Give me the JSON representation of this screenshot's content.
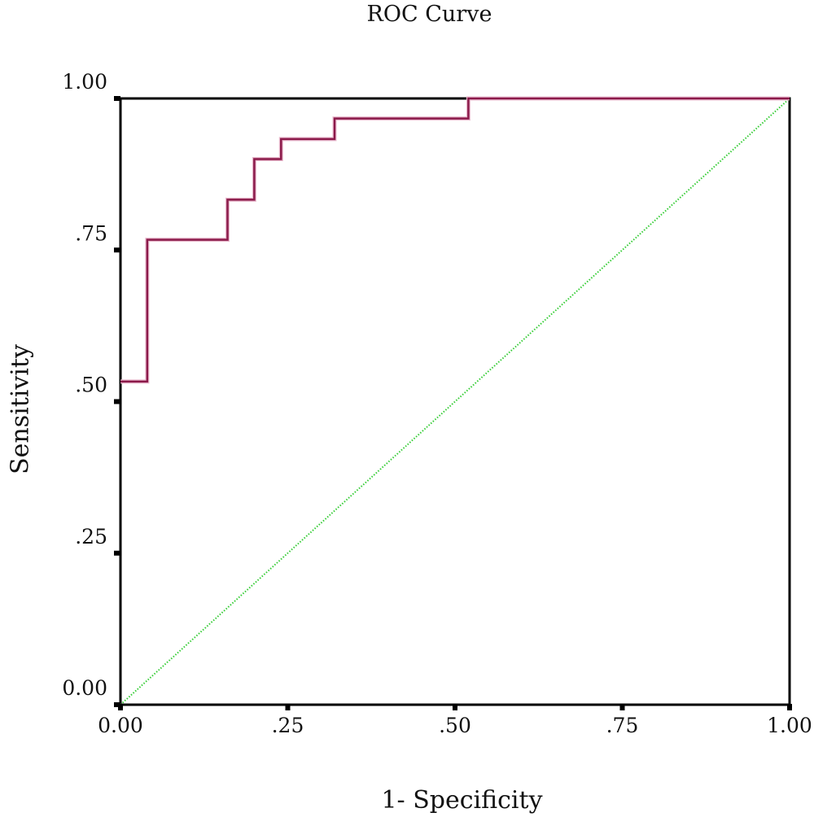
{
  "chart_data": {
    "type": "line",
    "title": "ROC Curve",
    "xlabel": "1- Specificity",
    "ylabel": "Sensitivity",
    "xlim": [
      0,
      1
    ],
    "ylim": [
      0,
      1
    ],
    "x_ticks": [
      {
        "value": 0,
        "label": "0.00"
      },
      {
        "value": 0.25,
        "label": ".25"
      },
      {
        "value": 0.5,
        "label": ".50"
      },
      {
        "value": 0.75,
        "label": ".75"
      },
      {
        "value": 1,
        "label": "1.00"
      }
    ],
    "y_ticks": [
      {
        "value": 0,
        "label": "0.00"
      },
      {
        "value": 0.25,
        "label": ".25"
      },
      {
        "value": 0.5,
        "label": ".50"
      },
      {
        "value": 0.75,
        "label": ".75"
      },
      {
        "value": 1,
        "label": "1.00"
      }
    ],
    "grid": false,
    "series": [
      {
        "color": "#8b1a4a",
        "style": "step",
        "points": [
          [
            0,
            0.533
          ],
          [
            0.04,
            0.533
          ],
          [
            0.04,
            0.767
          ],
          [
            0.16,
            0.767
          ],
          [
            0.16,
            0.833
          ],
          [
            0.2,
            0.833
          ],
          [
            0.2,
            0.9
          ],
          [
            0.24,
            0.9
          ],
          [
            0.24,
            0.933
          ],
          [
            0.32,
            0.933
          ],
          [
            0.32,
            0.967
          ],
          [
            0.52,
            0.967
          ],
          [
            0.52,
            1
          ],
          [
            1,
            1
          ]
        ]
      },
      {
        "color": "#33cc33",
        "style": "dotted",
        "points": [
          [
            0,
            0
          ],
          [
            1,
            1
          ]
        ]
      }
    ]
  }
}
